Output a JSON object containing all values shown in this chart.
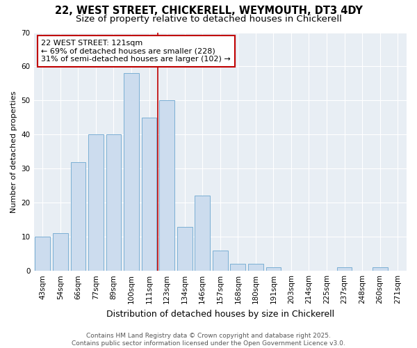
{
  "title_line1": "22, WEST STREET, CHICKERELL, WEYMOUTH, DT3 4DY",
  "title_line2": "Size of property relative to detached houses in Chickerell",
  "xlabel": "Distribution of detached houses by size in Chickerell",
  "ylabel": "Number of detached properties",
  "categories": [
    "43sqm",
    "54sqm",
    "66sqm",
    "77sqm",
    "89sqm",
    "100sqm",
    "111sqm",
    "123sqm",
    "134sqm",
    "146sqm",
    "157sqm",
    "168sqm",
    "180sqm",
    "191sqm",
    "203sqm",
    "214sqm",
    "225sqm",
    "237sqm",
    "248sqm",
    "260sqm",
    "271sqm"
  ],
  "values": [
    10,
    11,
    32,
    40,
    40,
    58,
    45,
    50,
    13,
    22,
    6,
    2,
    2,
    1,
    0,
    0,
    0,
    1,
    0,
    1,
    0
  ],
  "bar_color": "#ccdcee",
  "bar_edge_color": "#7bafd4",
  "vline_x_index": 7,
  "vline_color": "#c00000",
  "annotation_line1": "22 WEST STREET: 121sqm",
  "annotation_line2": "← 69% of detached houses are smaller (228)",
  "annotation_line3": "31% of semi-detached houses are larger (102) →",
  "ylim": [
    0,
    70
  ],
  "yticks": [
    0,
    10,
    20,
    30,
    40,
    50,
    60,
    70
  ],
  "plot_bg_color": "#e8eef4",
  "fig_bg_color": "#ffffff",
  "footer_text": "Contains HM Land Registry data © Crown copyright and database right 2025.\nContains public sector information licensed under the Open Government Licence v3.0.",
  "title_fontsize": 10.5,
  "subtitle_fontsize": 9.5,
  "tick_fontsize": 7.5,
  "ylabel_fontsize": 8,
  "xlabel_fontsize": 9,
  "annotation_fontsize": 8,
  "footer_fontsize": 6.5
}
